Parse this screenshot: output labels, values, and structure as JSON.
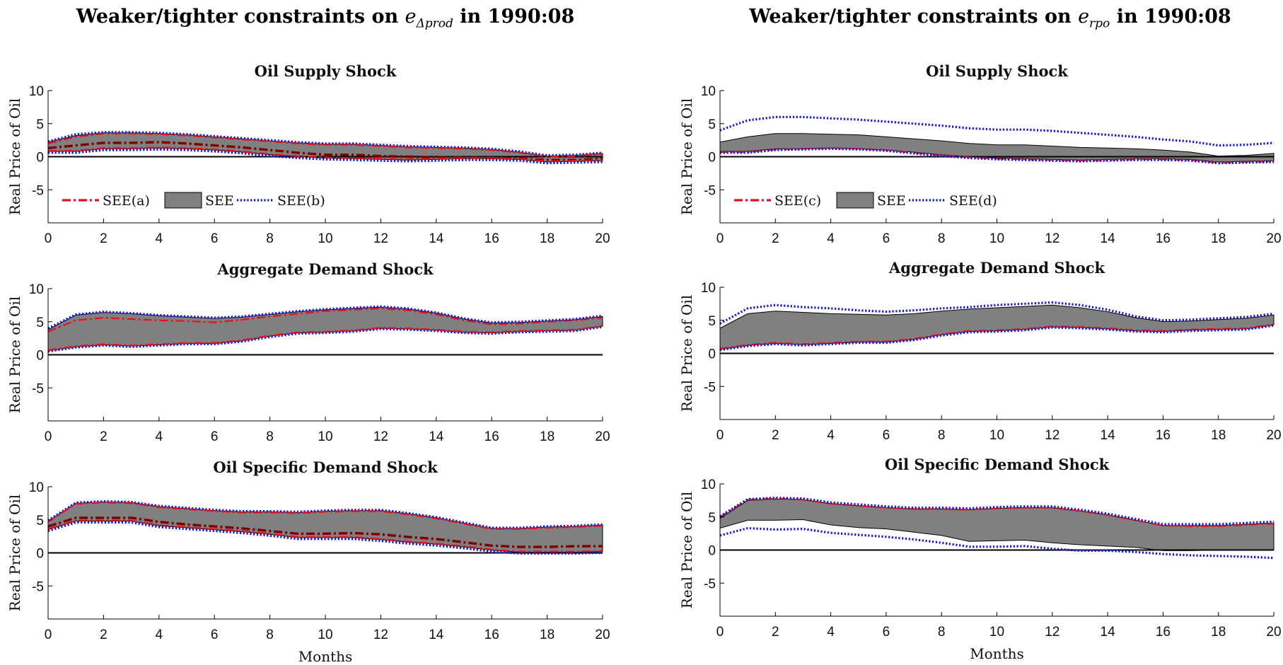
{
  "figure": {
    "left_title": {
      "pre": "Weaker/tighter constraints on ",
      "sym": "e",
      "sub": "Δprod",
      "post": " in 1990:08"
    },
    "right_title": {
      "pre": "Weaker/tighter constraints on ",
      "sym": "e",
      "sub": "rpo",
      "post": " in 1990:08"
    }
  },
  "colors": {
    "band": "#808080",
    "red": "#e8101a",
    "darkred": "#7a0000",
    "blue": "#1414e6"
  },
  "chart_data": [
    {
      "type": "area",
      "title": "Oil Supply Shock",
      "xlabel": "",
      "ylabel": "Real Price of Oil",
      "xlim": [
        0,
        20
      ],
      "ylim": [
        -10,
        10
      ],
      "xticks": [
        0,
        2,
        4,
        6,
        8,
        10,
        12,
        14,
        16,
        18,
        20
      ],
      "yticks": [
        -5,
        0,
        5,
        10
      ],
      "legend": [
        "SEE(a)",
        "SEE",
        "SEE(b)"
      ],
      "legend_position": "bottom-left",
      "x": [
        0,
        1,
        2,
        3,
        4,
        5,
        6,
        7,
        8,
        9,
        10,
        11,
        12,
        13,
        14,
        15,
        16,
        17,
        18,
        19,
        20
      ],
      "band_upper": [
        2.2,
        3.2,
        3.6,
        3.6,
        3.5,
        3.3,
        3.0,
        2.7,
        2.4,
        2.1,
        1.9,
        1.9,
        1.7,
        1.5,
        1.4,
        1.3,
        1.1,
        0.7,
        0.1,
        0.2,
        0.5
      ],
      "band_lower": [
        0.8,
        0.8,
        1.2,
        1.2,
        1.3,
        1.2,
        1.0,
        0.7,
        0.3,
        0.0,
        -0.2,
        -0.3,
        -0.4,
        -0.5,
        -0.4,
        -0.3,
        -0.3,
        -0.4,
        -0.8,
        -0.7,
        -0.6
      ],
      "series": [
        {
          "name": "SEE(a)",
          "style": "dashdot-darkred",
          "values": [
            1.3,
            1.7,
            2.1,
            2.1,
            2.2,
            2.0,
            1.7,
            1.4,
            1.0,
            0.6,
            0.3,
            0.3,
            0.1,
            0.0,
            -0.1,
            -0.1,
            -0.2,
            -0.3,
            -0.5,
            -0.5,
            -0.3
          ]
        },
        {
          "name": "SEE(b)",
          "style": "dotted-blue",
          "values": [
            2.3,
            3.4,
            3.7,
            3.7,
            3.6,
            3.4,
            3.1,
            2.8,
            2.5,
            2.2,
            2.0,
            2.0,
            1.8,
            1.6,
            1.5,
            1.4,
            1.2,
            0.8,
            0.2,
            0.3,
            0.6
          ]
        },
        {
          "name": "SEE(b)",
          "style": "dotted-blue",
          "values": [
            0.6,
            0.6,
            1.0,
            1.0,
            1.1,
            1.0,
            0.8,
            0.5,
            0.1,
            -0.2,
            -0.4,
            -0.5,
            -0.6,
            -0.7,
            -0.6,
            -0.5,
            -0.5,
            -0.6,
            -1.0,
            -0.9,
            -0.8
          ]
        },
        {
          "name": "SEE(a)",
          "style": "dashdot-red",
          "values": [
            2.0,
            3.0,
            3.5,
            3.5,
            3.4,
            3.2,
            2.9,
            2.6,
            2.3,
            2.0,
            1.8,
            1.8,
            1.6,
            1.4,
            1.3,
            1.2,
            1.0,
            0.6,
            0.0,
            0.1,
            0.4
          ]
        },
        {
          "name": "SEE(a)",
          "style": "dashdot-red",
          "values": [
            0.9,
            0.9,
            1.3,
            1.3,
            1.4,
            1.3,
            1.1,
            0.8,
            0.4,
            0.1,
            -0.1,
            -0.2,
            -0.3,
            -0.4,
            -0.3,
            -0.2,
            -0.2,
            -0.3,
            -0.7,
            -0.6,
            -0.5
          ]
        }
      ]
    },
    {
      "type": "area",
      "title": "Aggregate Demand Shock",
      "xlabel": "",
      "ylabel": "Real Price of Oil",
      "xlim": [
        0,
        20
      ],
      "ylim": [
        -10,
        10
      ],
      "xticks": [
        0,
        2,
        4,
        6,
        8,
        10,
        12,
        14,
        16,
        18,
        20
      ],
      "yticks": [
        -5,
        0,
        5,
        10
      ],
      "x": [
        0,
        1,
        2,
        3,
        4,
        5,
        6,
        7,
        8,
        9,
        10,
        11,
        12,
        13,
        14,
        15,
        16,
        17,
        18,
        19,
        20
      ],
      "band_upper": [
        3.8,
        6.0,
        6.4,
        6.2,
        5.9,
        5.7,
        5.5,
        5.7,
        6.1,
        6.5,
        6.8,
        7.0,
        7.2,
        6.9,
        6.3,
        5.4,
        4.8,
        4.9,
        5.1,
        5.3,
        5.8
      ],
      "band_lower": [
        0.6,
        1.2,
        1.5,
        1.3,
        1.5,
        1.7,
        1.7,
        2.1,
        2.8,
        3.3,
        3.4,
        3.6,
        4.0,
        3.9,
        3.7,
        3.4,
        3.3,
        3.5,
        3.6,
        3.7,
        4.3
      ],
      "series": [
        {
          "name": "SEE(a)",
          "style": "dashdot-red",
          "values": [
            3.5,
            5.2,
            5.6,
            5.4,
            5.2,
            5.1,
            4.9,
            5.3,
            5.8,
            6.2,
            6.6,
            6.8,
            7.0,
            6.7,
            6.1,
            5.2,
            4.6,
            4.7,
            5.0,
            5.2,
            5.6
          ]
        },
        {
          "name": "SEE(b)",
          "style": "dotted-blue",
          "values": [
            4.0,
            6.1,
            6.5,
            6.3,
            6.0,
            5.8,
            5.6,
            5.8,
            6.2,
            6.6,
            6.9,
            7.1,
            7.3,
            7.0,
            6.4,
            5.5,
            4.9,
            5.0,
            5.2,
            5.4,
            5.9
          ]
        },
        {
          "name": "SEE(b)",
          "style": "dotted-blue",
          "values": [
            0.5,
            1.1,
            1.4,
            1.2,
            1.4,
            1.6,
            1.6,
            2.0,
            2.7,
            3.2,
            3.3,
            3.5,
            3.9,
            3.8,
            3.6,
            3.3,
            3.2,
            3.4,
            3.5,
            3.6,
            4.2
          ]
        },
        {
          "name": "SEE(a)",
          "style": "dashdot-red",
          "values": [
            0.7,
            1.3,
            1.6,
            1.4,
            1.6,
            1.8,
            1.8,
            2.2,
            2.9,
            3.4,
            3.5,
            3.7,
            4.1,
            4.0,
            3.8,
            3.5,
            3.4,
            3.6,
            3.7,
            3.8,
            4.4
          ]
        }
      ]
    },
    {
      "type": "area",
      "title": "Oil Specific Demand Shock",
      "xlabel": "Months",
      "ylabel": "Real Price of Oil",
      "xlim": [
        0,
        20
      ],
      "ylim": [
        -10,
        10
      ],
      "xticks": [
        0,
        2,
        4,
        6,
        8,
        10,
        12,
        14,
        16,
        18,
        20
      ],
      "yticks": [
        -5,
        0,
        5,
        10
      ],
      "x": [
        0,
        1,
        2,
        3,
        4,
        5,
        6,
        7,
        8,
        9,
        10,
        11,
        12,
        13,
        14,
        15,
        16,
        17,
        18,
        19,
        20
      ],
      "band_upper": [
        4.8,
        7.5,
        7.7,
        7.6,
        7.0,
        6.7,
        6.4,
        6.2,
        6.2,
        6.1,
        6.3,
        6.4,
        6.4,
        5.9,
        5.3,
        4.5,
        3.7,
        3.7,
        3.9,
        4.0,
        4.2
      ],
      "band_lower": [
        3.5,
        4.8,
        4.8,
        4.8,
        4.1,
        3.8,
        3.5,
        3.2,
        2.8,
        2.3,
        2.3,
        2.3,
        2.0,
        1.6,
        1.3,
        0.9,
        0.4,
        0.1,
        0.1,
        0.1,
        0.2
      ],
      "series": [
        {
          "name": "SEE(a)",
          "style": "dashdot-darkred",
          "values": [
            4.0,
            5.3,
            5.3,
            5.3,
            4.7,
            4.3,
            4.0,
            3.7,
            3.3,
            2.9,
            2.9,
            3.0,
            2.8,
            2.4,
            2.1,
            1.6,
            1.1,
            0.9,
            0.9,
            1.0,
            1.0
          ]
        },
        {
          "name": "SEE(b)",
          "style": "dotted-blue",
          "values": [
            4.9,
            7.6,
            7.8,
            7.7,
            7.1,
            6.8,
            6.5,
            6.3,
            6.3,
            6.2,
            6.4,
            6.5,
            6.5,
            6.0,
            5.4,
            4.6,
            3.8,
            3.8,
            4.0,
            4.1,
            4.3
          ]
        },
        {
          "name": "SEE(b)",
          "style": "dotted-blue",
          "values": [
            3.3,
            4.6,
            4.6,
            4.6,
            3.9,
            3.6,
            3.3,
            3.0,
            2.6,
            2.1,
            2.1,
            2.1,
            1.8,
            1.4,
            1.1,
            0.7,
            0.2,
            -0.1,
            -0.1,
            -0.1,
            0.0
          ]
        },
        {
          "name": "SEE(a)",
          "style": "dashdot-red",
          "values": [
            4.7,
            7.4,
            7.6,
            7.5,
            6.9,
            6.6,
            6.3,
            6.1,
            6.1,
            6.0,
            6.2,
            6.3,
            6.3,
            5.8,
            5.2,
            4.4,
            3.6,
            3.6,
            3.8,
            3.9,
            4.1
          ]
        },
        {
          "name": "SEE(a)",
          "style": "dashdot-red",
          "values": [
            3.6,
            4.9,
            4.9,
            4.9,
            4.2,
            3.9,
            3.6,
            3.3,
            2.9,
            2.4,
            2.4,
            2.4,
            2.1,
            1.7,
            1.4,
            1.0,
            0.5,
            0.2,
            0.2,
            0.2,
            0.3
          ]
        }
      ]
    },
    {
      "type": "area",
      "title": "Oil Supply Shock",
      "xlabel": "",
      "ylabel": "Real Price of Oil",
      "xlim": [
        0,
        20
      ],
      "ylim": [
        -10,
        10
      ],
      "xticks": [
        0,
        2,
        4,
        6,
        8,
        10,
        12,
        14,
        16,
        18,
        20
      ],
      "yticks": [
        -5,
        0,
        5,
        10
      ],
      "legend": [
        "SEE(c)",
        "SEE",
        "SEE(d)"
      ],
      "legend_position": "bottom-left",
      "x": [
        0,
        1,
        2,
        3,
        4,
        5,
        6,
        7,
        8,
        9,
        10,
        11,
        12,
        13,
        14,
        15,
        16,
        17,
        18,
        19,
        20
      ],
      "band_upper": [
        2.2,
        3.0,
        3.5,
        3.5,
        3.4,
        3.3,
        3.0,
        2.7,
        2.4,
        2.0,
        1.8,
        1.8,
        1.6,
        1.4,
        1.3,
        1.2,
        1.0,
        0.7,
        0.1,
        0.2,
        0.5
      ],
      "band_lower": [
        0.8,
        0.8,
        1.2,
        1.2,
        1.3,
        1.2,
        1.0,
        0.7,
        0.3,
        0.0,
        -0.2,
        -0.3,
        -0.4,
        -0.5,
        -0.4,
        -0.3,
        -0.3,
        -0.4,
        -0.8,
        -0.7,
        -0.6
      ],
      "series": [
        {
          "name": "SEE(c)",
          "style": "dashdot-red",
          "values": [
            0.7,
            0.7,
            1.1,
            1.2,
            1.3,
            1.2,
            1.0,
            0.6,
            0.2,
            -0.1,
            -0.3,
            -0.4,
            -0.5,
            -0.6,
            -0.5,
            -0.4,
            -0.4,
            -0.5,
            -0.9,
            -0.8,
            -0.7
          ]
        },
        {
          "name": "SEE(d)",
          "style": "dotted-blue",
          "values": [
            4.0,
            5.5,
            6.0,
            6.0,
            5.8,
            5.6,
            5.3,
            5.0,
            4.7,
            4.3,
            4.1,
            4.1,
            3.9,
            3.6,
            3.3,
            3.0,
            2.6,
            2.3,
            1.7,
            1.8,
            2.1
          ]
        },
        {
          "name": "SEE(d)",
          "style": "dotted-blue",
          "values": [
            0.6,
            0.6,
            1.0,
            1.1,
            1.2,
            1.1,
            0.9,
            0.5,
            0.1,
            -0.2,
            -0.4,
            -0.5,
            -0.6,
            -0.7,
            -0.6,
            -0.5,
            -0.5,
            -0.6,
            -1.0,
            -0.9,
            -0.8
          ]
        }
      ]
    },
    {
      "type": "area",
      "title": "Aggregate Demand Shock",
      "xlabel": "",
      "ylabel": "Real Price of Oil",
      "xlim": [
        0,
        20
      ],
      "ylim": [
        -10,
        10
      ],
      "xticks": [
        0,
        2,
        4,
        6,
        8,
        10,
        12,
        14,
        16,
        18,
        20
      ],
      "yticks": [
        -5,
        0,
        5,
        10
      ],
      "x": [
        0,
        1,
        2,
        3,
        4,
        5,
        6,
        7,
        8,
        9,
        10,
        11,
        12,
        13,
        14,
        15,
        16,
        17,
        18,
        19,
        20
      ],
      "band_upper": [
        3.8,
        6.0,
        6.4,
        6.2,
        6.0,
        5.9,
        5.8,
        6.0,
        6.4,
        6.7,
        6.9,
        7.1,
        7.3,
        6.9,
        6.3,
        5.4,
        4.8,
        4.9,
        5.1,
        5.3,
        5.8
      ],
      "band_lower": [
        0.6,
        1.2,
        1.5,
        1.3,
        1.5,
        1.7,
        1.7,
        2.1,
        2.8,
        3.3,
        3.4,
        3.6,
        4.0,
        3.9,
        3.7,
        3.4,
        3.3,
        3.5,
        3.6,
        3.7,
        4.3
      ],
      "series": [
        {
          "name": "SEE(c)",
          "style": "dashdot-red",
          "values": [
            0.7,
            1.3,
            1.6,
            1.4,
            1.6,
            1.8,
            1.8,
            2.2,
            2.9,
            3.4,
            3.5,
            3.7,
            4.1,
            4.0,
            3.8,
            3.5,
            3.4,
            3.6,
            3.7,
            3.8,
            4.4
          ]
        },
        {
          "name": "SEE(d)",
          "style": "dotted-blue",
          "values": [
            4.5,
            6.8,
            7.3,
            7.0,
            6.8,
            6.5,
            6.3,
            6.5,
            6.8,
            7.0,
            7.3,
            7.5,
            7.7,
            7.3,
            6.6,
            5.6,
            5.0,
            5.1,
            5.3,
            5.5,
            6.0
          ]
        },
        {
          "name": "SEE(d)",
          "style": "dotted-blue",
          "values": [
            0.5,
            1.1,
            1.4,
            1.2,
            1.4,
            1.6,
            1.6,
            2.0,
            2.7,
            3.2,
            3.3,
            3.5,
            3.9,
            3.8,
            3.6,
            3.3,
            3.2,
            3.4,
            3.5,
            3.6,
            4.2
          ]
        }
      ]
    },
    {
      "type": "area",
      "title": "Oil Specific Demand Shock",
      "xlabel": "Months",
      "ylabel": "Real Price of Oil",
      "xlim": [
        0,
        20
      ],
      "ylim": [
        -10,
        10
      ],
      "xticks": [
        0,
        2,
        4,
        6,
        8,
        10,
        12,
        14,
        16,
        18,
        20
      ],
      "yticks": [
        -5,
        0,
        5,
        10
      ],
      "x": [
        0,
        1,
        2,
        3,
        4,
        5,
        6,
        7,
        8,
        9,
        10,
        11,
        12,
        13,
        14,
        15,
        16,
        17,
        18,
        19,
        20
      ],
      "band_upper": [
        4.8,
        7.5,
        7.7,
        7.6,
        7.0,
        6.7,
        6.4,
        6.2,
        6.2,
        6.1,
        6.3,
        6.4,
        6.4,
        5.9,
        5.3,
        4.5,
        3.7,
        3.7,
        3.7,
        3.9,
        4.1
      ],
      "band_lower": [
        3.3,
        4.5,
        4.5,
        4.6,
        3.8,
        3.4,
        3.2,
        2.7,
        2.2,
        1.3,
        1.4,
        1.5,
        1.1,
        0.8,
        0.6,
        0.4,
        -0.1,
        -0.1,
        0.0,
        0.0,
        0.0
      ],
      "series": [
        {
          "name": "SEE(c)",
          "style": "dashdot-red",
          "values": [
            5.0,
            7.6,
            7.8,
            7.6,
            7.0,
            6.7,
            6.4,
            6.2,
            6.2,
            6.1,
            6.3,
            6.4,
            6.4,
            5.9,
            5.3,
            4.5,
            3.7,
            3.6,
            3.6,
            3.8,
            4.0
          ]
        },
        {
          "name": "SEE(d)",
          "style": "dotted-blue",
          "values": [
            5.1,
            7.7,
            7.9,
            7.8,
            7.2,
            6.9,
            6.6,
            6.4,
            6.4,
            6.3,
            6.5,
            6.6,
            6.6,
            6.1,
            5.5,
            4.7,
            3.9,
            3.9,
            3.9,
            4.1,
            4.3
          ]
        },
        {
          "name": "SEE(d)",
          "style": "dotted-blue",
          "values": [
            2.2,
            3.3,
            3.1,
            3.2,
            2.6,
            2.3,
            2.0,
            1.6,
            1.1,
            0.5,
            0.5,
            0.6,
            0.2,
            -0.1,
            -0.1,
            -0.3,
            -0.6,
            -0.8,
            -0.9,
            -1.0,
            -1.2
          ]
        }
      ]
    }
  ]
}
